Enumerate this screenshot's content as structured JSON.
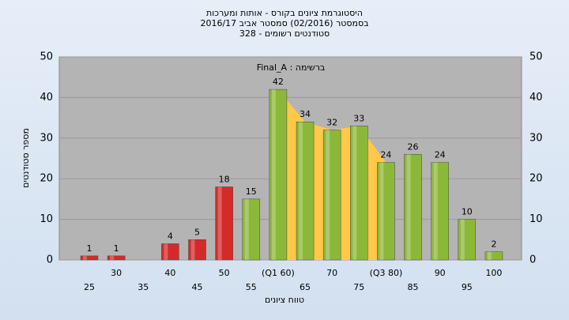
{
  "chart_data": {
    "type": "bar",
    "title": [
      "היסטוגרמת ציונים בקורס - אותות ומערכות",
      "בסמסטר  (02/2016)  סמסטר אביב 2016/17",
      "סטודנטים רשומים - 328"
    ],
    "annotation": "ברשימה : Final_A",
    "xlabel": "טווח ציונים",
    "ylabel": "מספר סטודנטים",
    "categories": [
      "25",
      "30",
      "35",
      "40",
      "45",
      "50",
      "55",
      "(Q1 60)",
      "65",
      "70",
      "75",
      "(Q3 80)",
      "85",
      "90",
      "95",
      "100"
    ],
    "values": [
      1,
      1,
      null,
      4,
      5,
      18,
      15,
      42,
      34,
      32,
      33,
      24,
      26,
      24,
      10,
      2
    ],
    "colors": [
      "#d42a2a",
      "#d42a2a",
      "#d42a2a",
      "#d42a2a",
      "#d42a2a",
      "#d42a2a",
      "#8cb83a",
      "#8cb83a",
      "#8cb83a",
      "#8cb83a",
      "#8cb83a",
      "#8cb83a",
      "#8cb83a",
      "#8cb83a",
      "#8cb83a",
      "#8cb83a"
    ],
    "area_color": "#ffc848",
    "ylim": [
      0,
      50
    ],
    "yticks": [
      0,
      10,
      20,
      30,
      40,
      50
    ],
    "grid": true
  }
}
